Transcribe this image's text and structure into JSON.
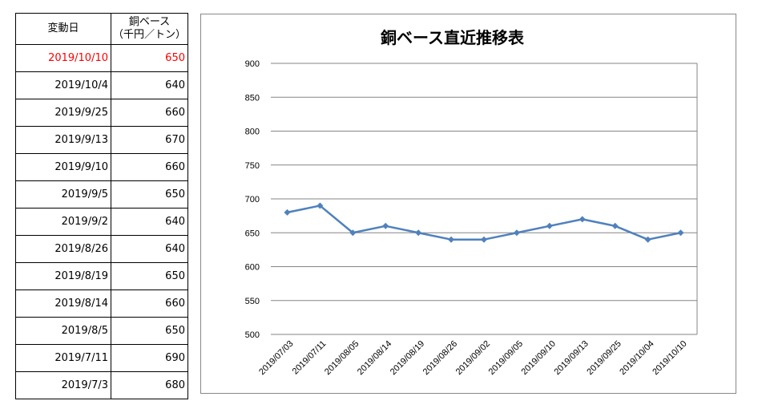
{
  "table": {
    "header_date": "変動日",
    "header_value_line1": "銅ベース",
    "header_value_line2": "（千円／トン）",
    "rows": [
      {
        "date": "2019/10/10",
        "value": "650",
        "highlight": true
      },
      {
        "date": "2019/10/4",
        "value": "640"
      },
      {
        "date": "2019/9/25",
        "value": "660"
      },
      {
        "date": "2019/9/13",
        "value": "670"
      },
      {
        "date": "2019/9/10",
        "value": "660"
      },
      {
        "date": "2019/9/5",
        "value": "650"
      },
      {
        "date": "2019/9/2",
        "value": "640"
      },
      {
        "date": "2019/8/26",
        "value": "640"
      },
      {
        "date": "2019/8/19",
        "value": "650"
      },
      {
        "date": "2019/8/14",
        "value": "660"
      },
      {
        "date": "2019/8/5",
        "value": "650"
      },
      {
        "date": "2019/7/11",
        "value": "690"
      },
      {
        "date": "2019/7/3",
        "value": "680"
      }
    ]
  },
  "colors": {
    "highlight_text": "#ff0000",
    "series_line": "#4f81bd",
    "gridline": "#868686"
  },
  "chart_data": {
    "type": "line",
    "title": "銅ベース直近推移表",
    "xlabel": "",
    "ylabel": "",
    "ylim": [
      500,
      900
    ],
    "yticks": [
      500,
      550,
      600,
      650,
      700,
      750,
      800,
      850,
      900
    ],
    "grid": true,
    "categories": [
      "2019/07/03",
      "2019/07/11",
      "2019/08/05",
      "2019/08/14",
      "2019/08/19",
      "2019/08/26",
      "2019/09/02",
      "2019/09/05",
      "2019/09/10",
      "2019/09/13",
      "2019/09/25",
      "2019/10/04",
      "2019/10/10"
    ],
    "series": [
      {
        "values": [
          680,
          690,
          650,
          660,
          650,
          640,
          640,
          650,
          660,
          670,
          660,
          640,
          650
        ]
      }
    ]
  }
}
